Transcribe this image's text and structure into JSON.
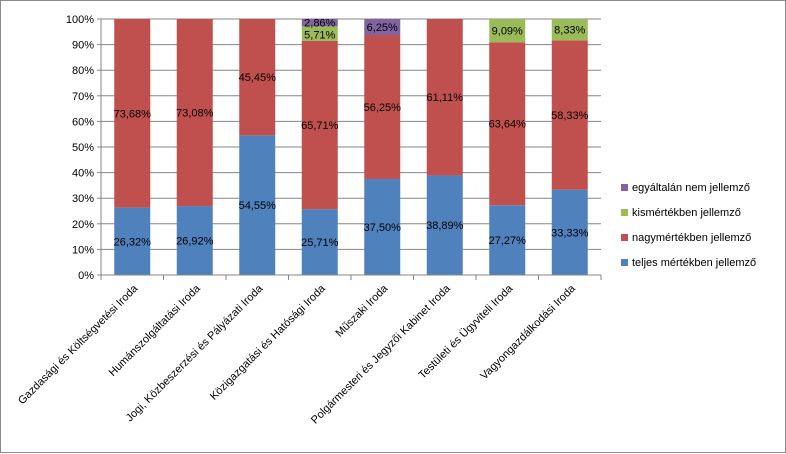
{
  "chart_data": {
    "type": "bar",
    "stacked": true,
    "categories": [
      "Gazdasági és Költségvetési Iroda",
      "Humánszolgáltatási  Iroda",
      "Jogi, Közbeszerzési és Pályázati  Iroda",
      "Közigazgatási és Hatósági Iroda",
      "Műszaki Iroda",
      "Polgármesteri és Jegyzői Kabinet Iroda",
      "Testületi és Ügyviteli Iroda",
      "Vagyongazdálkodási Iroda"
    ],
    "series": [
      {
        "name": "teljes mértékben jellemző",
        "color": "#4f81bd",
        "values": [
          26.32,
          26.92,
          54.55,
          25.71,
          37.5,
          38.89,
          27.27,
          33.33
        ],
        "labels": [
          "26,32%",
          "26,92%",
          "54,55%",
          "25,71%",
          "37,50%",
          "38,89%",
          "27,27%",
          "33,33%"
        ]
      },
      {
        "name": "nagymértékben jellemző",
        "color": "#c0504d",
        "values": [
          73.68,
          73.08,
          45.45,
          65.71,
          56.25,
          61.11,
          63.64,
          58.33
        ],
        "labels": [
          "73,68%",
          "73,08%",
          "45,45%",
          "65,71%",
          "56,25%",
          "61,11%",
          "63,64%",
          "58,33%"
        ]
      },
      {
        "name": "kismértékben jellemző",
        "color": "#9bbb59",
        "values": [
          0,
          0,
          0,
          5.71,
          0,
          0,
          9.09,
          8.33
        ],
        "labels": [
          "",
          "",
          "",
          "5,71%",
          "",
          "",
          "9,09%",
          "8,33%"
        ]
      },
      {
        "name": "egyáltalán nem jellemző",
        "color": "#8064a2",
        "values": [
          0,
          0,
          0,
          2.86,
          6.25,
          0,
          0,
          0
        ],
        "labels": [
          "",
          "",
          "",
          "2,86%",
          "6,25%",
          "",
          "",
          ""
        ]
      }
    ],
    "yticks": [
      "0%",
      "10%",
      "20%",
      "30%",
      "40%",
      "50%",
      "60%",
      "70%",
      "80%",
      "90%",
      "100%"
    ],
    "ylim": [
      0,
      100
    ],
    "grid": true,
    "legend_position": "right",
    "legend_order": [
      3,
      2,
      1,
      0
    ]
  }
}
